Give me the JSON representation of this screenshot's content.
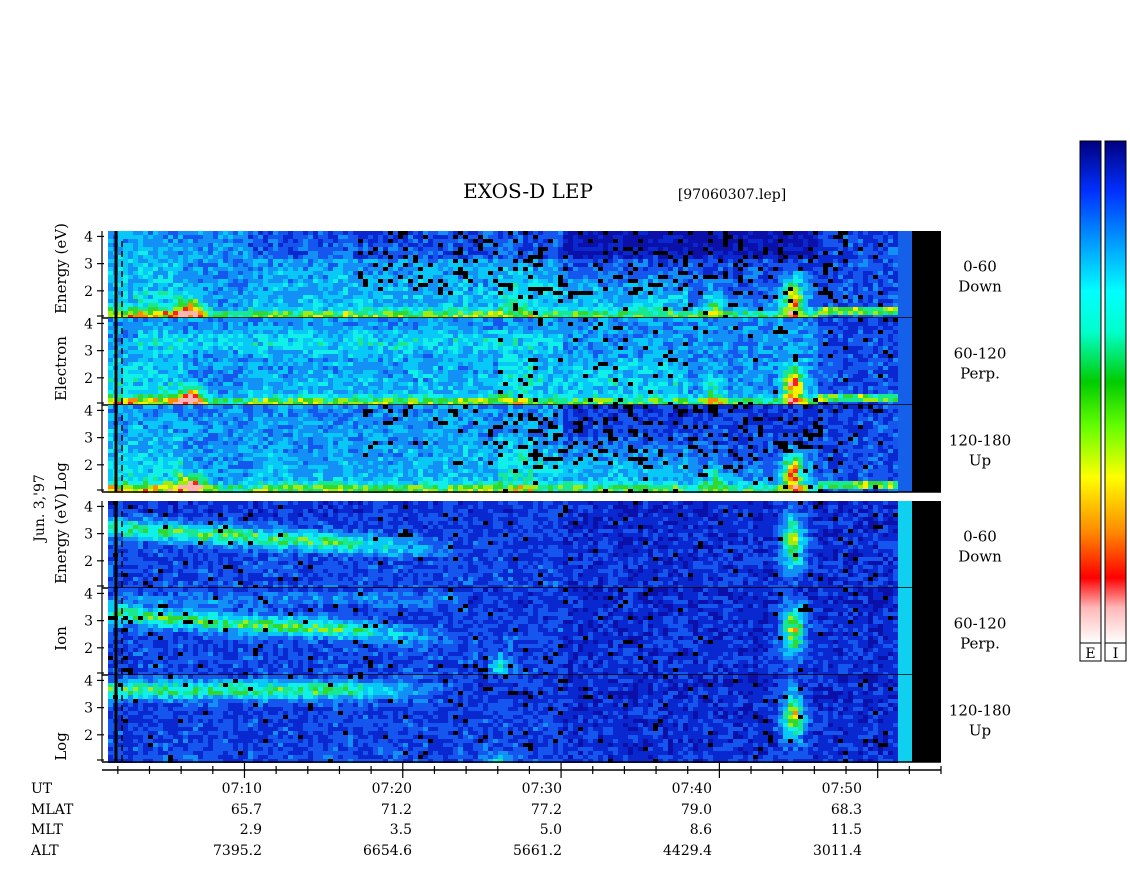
{
  "chart_data": {
    "type": "heatmap",
    "title": "EXOS-D LEP",
    "file_label": "[97060307.lep]",
    "date_label": "Jun. 3,'97",
    "y_scale": "log",
    "y_ticks": [
      2,
      3,
      4
    ],
    "y_range_log": [
      1,
      4.2
    ],
    "x_range_minutes": [
      "07:01",
      "07:54"
    ],
    "groups": [
      {
        "ylabel": [
          "Log",
          "Electron",
          "Energy (eV)"
        ],
        "panels": [
          {
            "range": "0-60",
            "label": "Down"
          },
          {
            "range": "60-120",
            "label": "Perp."
          },
          {
            "range": "120-180",
            "label": "Up"
          }
        ]
      },
      {
        "ylabel": [
          "Log",
          "Ion",
          "Energy (eV)"
        ],
        "panels": [
          {
            "range": "0-60",
            "label": "Down"
          },
          {
            "range": "60-120",
            "label": "Perp."
          },
          {
            "range": "120-180",
            "label": "Up"
          }
        ]
      }
    ],
    "ephemeris": {
      "row_labels": [
        "UT",
        "MLAT",
        "MLT",
        "ALT"
      ],
      "times": [
        "07:10",
        "07:20",
        "07:30",
        "07:40",
        "07:50"
      ],
      "MLAT": [
        "65.7",
        "71.2",
        "77.2",
        "79.0",
        "68.3"
      ],
      "MLT": [
        "2.9",
        "3.5",
        "5.0",
        "8.6",
        "11.5"
      ],
      "ALT": [
        "7395.2",
        "6654.6",
        "5661.2",
        "4429.4",
        "3011.4"
      ]
    },
    "colorbars": [
      {
        "label": "E"
      },
      {
        "label": "I"
      }
    ],
    "colormap": [
      "#ffffff",
      "#ffb0b0",
      "#ff0000",
      "#ff8800",
      "#ffff00",
      "#88ff00",
      "#00dd00",
      "#00ffcc",
      "#00ffff",
      "#0099ff",
      "#0040ff",
      "#0000aa"
    ]
  }
}
